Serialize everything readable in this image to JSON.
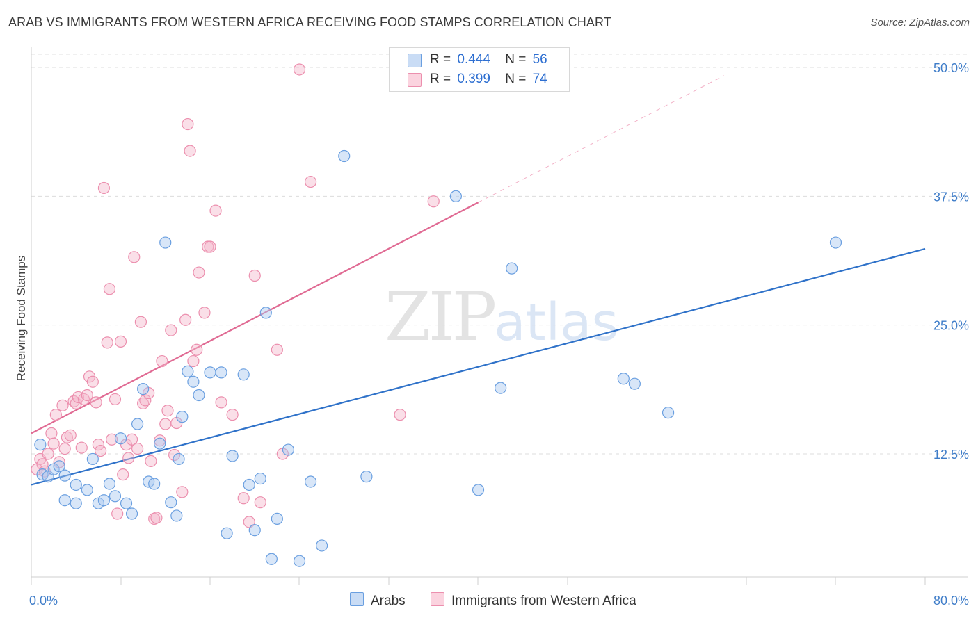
{
  "header": {
    "title": "ARAB VS IMMIGRANTS FROM WESTERN AFRICA RECEIVING FOOD STAMPS CORRELATION CHART",
    "source": "Source: ZipAtlas.com"
  },
  "watermark": {
    "zip": "ZIP",
    "atlas": "atlas"
  },
  "legend": {
    "rows": [
      {
        "r_label": "R =",
        "r_value": "0.444",
        "n_label": "N =",
        "n_value": "56",
        "color": "#a8c8f0"
      },
      {
        "r_label": "R =",
        "r_value": "0.399",
        "n_label": "N =",
        "n_value": "74",
        "color": "#f5b8cb"
      }
    ]
  },
  "bottom_legend": {
    "arabs": "Arabs",
    "wafrica": "Immigrants from Western Africa"
  },
  "chart_data": {
    "type": "scatter",
    "title": "ARAB VS IMMIGRANTS FROM WESTERN AFRICA RECEIVING FOOD STAMPS CORRELATION CHART",
    "ylabel": "Receiving Food Stamps",
    "xlabel": "",
    "xlim": [
      0,
      80
    ],
    "ylim": [
      0,
      52
    ],
    "x_ticks": [
      "0.0%",
      "80.0%"
    ],
    "y_ticks": [
      {
        "value": 12.5,
        "label": "12.5%"
      },
      {
        "value": 25.0,
        "label": "25.0%"
      },
      {
        "value": 37.5,
        "label": "37.5%"
      },
      {
        "value": 50.0,
        "label": "50.0%"
      }
    ],
    "grid": true,
    "legend_position": "top-center",
    "colors": {
      "arabs": "#6a9fe0",
      "arabs_fill": "#a8c8f0",
      "arabs_line": "#2f72c9",
      "wafrica": "#ec8fae",
      "wafrica_fill": "#f5b8cb",
      "wafrica_line": "#e06a93"
    },
    "series": [
      {
        "name": "Arabs",
        "trend": {
          "x0": 0,
          "y0": 9.5,
          "x1": 80,
          "y1": 32.4
        },
        "points": [
          [
            1,
            10.5
          ],
          [
            1.5,
            10.3
          ],
          [
            2,
            11
          ],
          [
            2.5,
            11.3
          ],
          [
            3,
            8
          ],
          [
            3,
            10.4
          ],
          [
            4,
            9.5
          ],
          [
            4,
            7.7
          ],
          [
            5,
            9
          ],
          [
            5.5,
            12
          ],
          [
            6,
            7.7
          ],
          [
            6.5,
            8
          ],
          [
            7,
            9.6
          ],
          [
            7.5,
            8.4
          ],
          [
            8,
            14
          ],
          [
            8.5,
            7.7
          ],
          [
            9,
            6.7
          ],
          [
            9.5,
            15.4
          ],
          [
            10,
            18.8
          ],
          [
            10.5,
            9.8
          ],
          [
            11,
            9.6
          ],
          [
            11.5,
            13.5
          ],
          [
            12,
            33
          ],
          [
            12.5,
            7.8
          ],
          [
            13,
            6.5
          ],
          [
            13.2,
            12
          ],
          [
            13.5,
            16.1
          ],
          [
            14,
            20.5
          ],
          [
            14.5,
            19.5
          ],
          [
            15,
            18.2
          ],
          [
            16,
            20.4
          ],
          [
            17,
            20.4
          ],
          [
            17.5,
            4.8
          ],
          [
            18,
            12.3
          ],
          [
            19,
            20.2
          ],
          [
            19.5,
            9.5
          ],
          [
            20,
            5.1
          ],
          [
            20.5,
            10.1
          ],
          [
            21,
            26.2
          ],
          [
            21.5,
            2.3
          ],
          [
            22,
            6.2
          ],
          [
            23,
            12.9
          ],
          [
            24,
            2.1
          ],
          [
            25,
            9.8
          ],
          [
            26,
            3.6
          ],
          [
            28,
            41.4
          ],
          [
            30,
            10.3
          ],
          [
            38,
            37.5
          ],
          [
            40,
            9
          ],
          [
            42,
            18.9
          ],
          [
            43,
            30.5
          ],
          [
            53,
            19.8
          ],
          [
            54,
            19.3
          ],
          [
            57,
            16.5
          ],
          [
            72,
            33
          ],
          [
            0.8,
            13.4
          ]
        ]
      },
      {
        "name": "Immigrants from Western Africa",
        "trend": {
          "x0": 0,
          "y0": 14.5,
          "x1": 40,
          "y1": 36.9
        },
        "trend_ext": {
          "x0": 40,
          "y0": 36.9,
          "x1": 62,
          "y1": 49.2
        },
        "points": [
          [
            0.5,
            11
          ],
          [
            0.8,
            12
          ],
          [
            1,
            11.5
          ],
          [
            1.2,
            10.8
          ],
          [
            1.5,
            12.5
          ],
          [
            1.8,
            14.5
          ],
          [
            2,
            13.5
          ],
          [
            2.2,
            16.3
          ],
          [
            2.5,
            11.7
          ],
          [
            2.8,
            17.2
          ],
          [
            3,
            13
          ],
          [
            3.2,
            14.1
          ],
          [
            3.5,
            14.3
          ],
          [
            3.8,
            17.6
          ],
          [
            4,
            17.4
          ],
          [
            4.2,
            18
          ],
          [
            4.5,
            13.1
          ],
          [
            4.7,
            17.8
          ],
          [
            5,
            18.2
          ],
          [
            5.2,
            20
          ],
          [
            5.5,
            19.5
          ],
          [
            5.8,
            17.5
          ],
          [
            6,
            13.4
          ],
          [
            6.2,
            12.8
          ],
          [
            6.5,
            38.3
          ],
          [
            6.8,
            23.3
          ],
          [
            7,
            28.5
          ],
          [
            7.2,
            13.9
          ],
          [
            7.5,
            17.8
          ],
          [
            7.7,
            6.7
          ],
          [
            8,
            23.4
          ],
          [
            8.2,
            10.5
          ],
          [
            8.5,
            13.4
          ],
          [
            8.7,
            12.1
          ],
          [
            9,
            13.9
          ],
          [
            9.2,
            31.6
          ],
          [
            9.5,
            13
          ],
          [
            9.8,
            25.3
          ],
          [
            10,
            17.4
          ],
          [
            10.2,
            17.7
          ],
          [
            10.5,
            18.4
          ],
          [
            10.7,
            11.8
          ],
          [
            11,
            6.2
          ],
          [
            11.2,
            6.3
          ],
          [
            11.5,
            13.8
          ],
          [
            11.7,
            21.5
          ],
          [
            12,
            15.4
          ],
          [
            12.2,
            16.7
          ],
          [
            12.5,
            24.5
          ],
          [
            12.8,
            12.4
          ],
          [
            13,
            15.5
          ],
          [
            13.5,
            8.8
          ],
          [
            13.8,
            25.5
          ],
          [
            14,
            44.5
          ],
          [
            14.2,
            41.9
          ],
          [
            14.5,
            21.5
          ],
          [
            14.8,
            22.6
          ],
          [
            15,
            30.1
          ],
          [
            15.5,
            26.2
          ],
          [
            15.8,
            32.6
          ],
          [
            16,
            32.6
          ],
          [
            16.5,
            36.1
          ],
          [
            17,
            17.5
          ],
          [
            18,
            16.3
          ],
          [
            19,
            8.2
          ],
          [
            19.5,
            5.9
          ],
          [
            20,
            29.8
          ],
          [
            20.5,
            7.8
          ],
          [
            22,
            22.6
          ],
          [
            22.5,
            12.5
          ],
          [
            24,
            49.8
          ],
          [
            25,
            38.9
          ],
          [
            33,
            16.3
          ],
          [
            36,
            37
          ]
        ]
      }
    ]
  }
}
